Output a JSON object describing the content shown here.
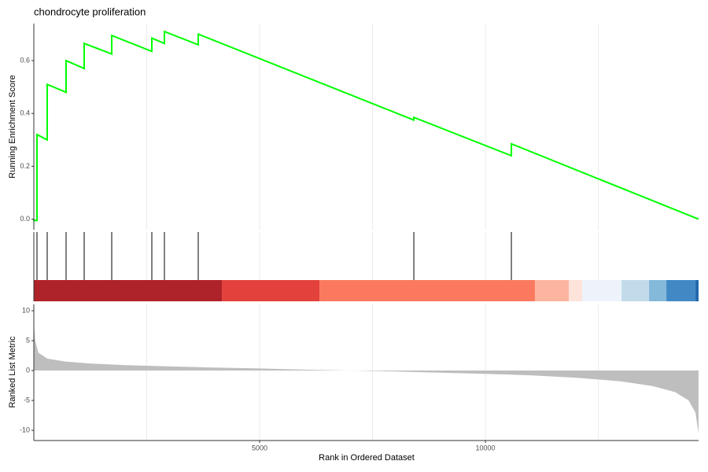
{
  "chart_data": [
    {
      "type": "line",
      "title": "chondrocyte proliferation",
      "ylabel": "Running Enrichment Score",
      "series": [
        {
          "color": "#00ff00",
          "x": [
            0,
            0,
            70,
            70,
            296,
            296,
            714,
            714,
            1115,
            1115,
            1725,
            1725,
            2613,
            2613,
            2892,
            2892,
            3641,
            3641,
            8415,
            8415,
            10575,
            10575,
            14720
          ],
          "values": [
            0,
            -0.005,
            -0.005,
            0.32,
            0.3,
            0.51,
            0.48,
            0.6,
            0.57,
            0.665,
            0.625,
            0.695,
            0.635,
            0.685,
            0.665,
            0.71,
            0.66,
            0.7,
            0.375,
            0.385,
            0.24,
            0.285,
            0
          ]
        }
      ],
      "xlim": [
        0,
        14720
      ],
      "ylim": [
        -0.04,
        0.74
      ],
      "yticks": [
        {
          "value": 0,
          "label": "0.0"
        },
        0.2,
        0.4,
        0.6
      ],
      "xgrid": [
        2500,
        5000,
        7500,
        10000,
        12500
      ]
    },
    {
      "type": "rug",
      "x": [
        0,
        70,
        296,
        714,
        1115,
        1725,
        2613,
        2892,
        3641,
        8415,
        10575
      ],
      "xlim": [
        0,
        14720
      ],
      "band_edges": [
        0,
        4164,
        6324,
        11098,
        11847,
        12143,
        13014,
        13624,
        14007,
        14652,
        14720
      ],
      "band_colors": [
        "#ae2329",
        "#e2413c",
        "#fb7a5f",
        "#fdb5a0",
        "#fde3da",
        "#eef3fb",
        "#c2dbea",
        "#85b9da",
        "#4189c4",
        "#2166ac"
      ],
      "xgrid": [
        2500,
        5000,
        7500,
        10000,
        12500
      ]
    },
    {
      "type": "area",
      "ylabel": "Ranked List Metric",
      "xlabel": "Rank in Ordered Dataset",
      "color": "#bebebe",
      "x": [
        0,
        30,
        100,
        300,
        700,
        1200,
        2000,
        3000,
        4000,
        5000,
        6000,
        7000,
        8000,
        9000,
        10000,
        11000,
        12000,
        13000,
        13700,
        14200,
        14500,
        14650,
        14720
      ],
      "values": [
        8,
        5,
        3,
        2,
        1.5,
        1.2,
        0.9,
        0.7,
        0.5,
        0.35,
        0.15,
        0,
        -0.15,
        -0.35,
        -0.55,
        -0.8,
        -1.2,
        -1.8,
        -2.6,
        -3.6,
        -5,
        -7,
        -10.5
      ],
      "xlim": [
        0,
        14720
      ],
      "ylim": [
        -11.7,
        11.05
      ],
      "yticks": [
        10,
        5,
        0,
        -5,
        -10
      ],
      "xticks": [
        5000,
        10000
      ],
      "xgrid": [
        2500,
        5000,
        7500,
        10000,
        12500
      ]
    }
  ]
}
